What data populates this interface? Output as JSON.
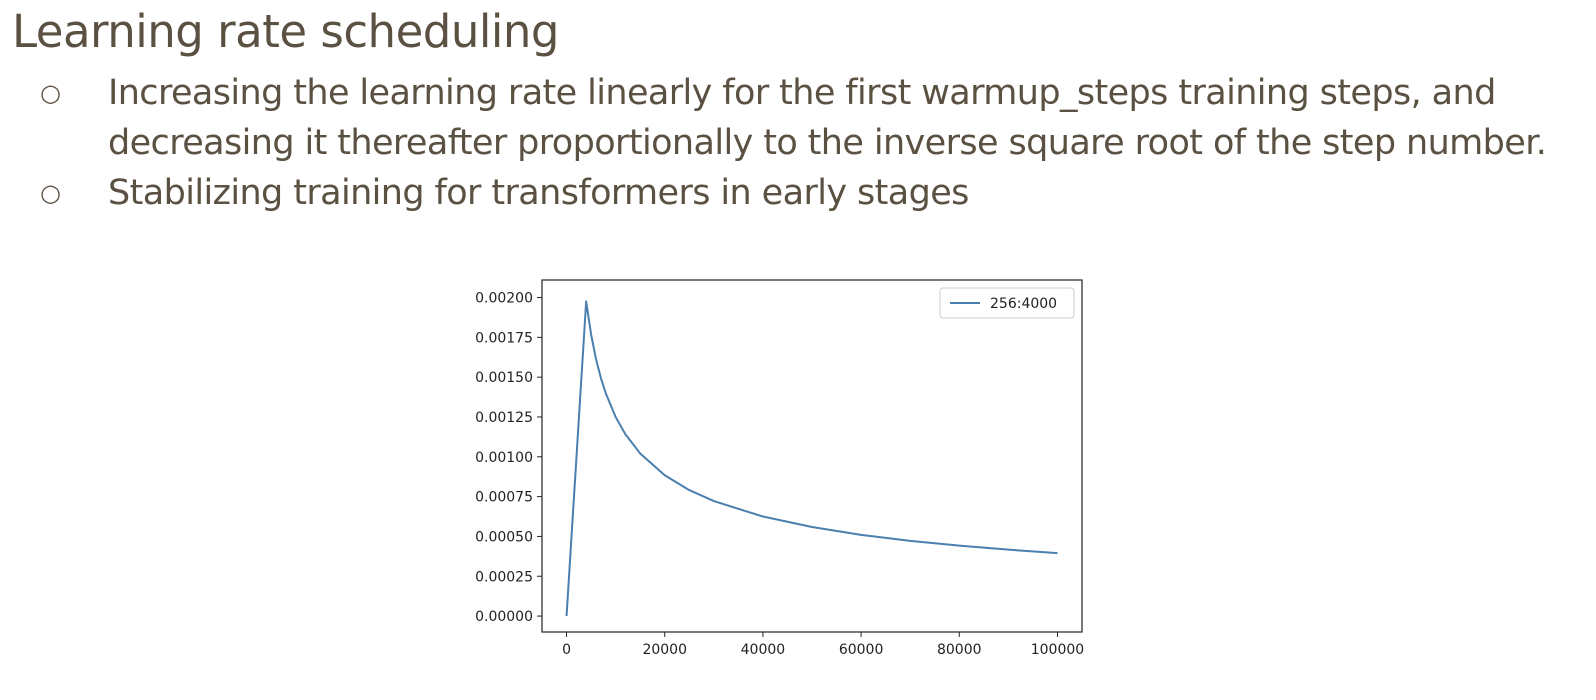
{
  "slide": {
    "title": "Learning rate scheduling",
    "bullet_marker": "○",
    "bullets": [
      "Increasing the learning rate linearly for the first warmup_steps training steps, and decreasing it thereafter proportionally to the inverse square root of the step number.",
      "Stabilizing training for transformers in early stages"
    ]
  },
  "chart_data": {
    "type": "line",
    "title": "",
    "xlabel": "",
    "ylabel": "",
    "xlim": [
      -5000,
      105000
    ],
    "ylim": [
      -0.0001,
      0.00211
    ],
    "x_ticks": [
      0,
      20000,
      40000,
      60000,
      80000,
      100000
    ],
    "x_tick_labels": [
      "0",
      "20000",
      "40000",
      "60000",
      "80000",
      "100000"
    ],
    "y_ticks": [
      0,
      0.00025,
      0.0005,
      0.00075,
      0.001,
      0.00125,
      0.0015,
      0.00175,
      0.002
    ],
    "y_tick_labels": [
      "0.00000",
      "0.00025",
      "0.00050",
      "0.00075",
      "0.00100",
      "0.00125",
      "0.00150",
      "0.00175",
      "0.00200"
    ],
    "grid": false,
    "legend_position": "top-right",
    "series": [
      {
        "name": "256:4000",
        "color": "#4a7fb0",
        "x": [
          0,
          4000,
          5000,
          6000,
          7000,
          8000,
          10000,
          12000,
          15000,
          20000,
          25000,
          30000,
          40000,
          50000,
          60000,
          70000,
          80000,
          90000,
          100000
        ],
        "y": [
          0.0,
          0.001976,
          0.001768,
          0.001614,
          0.001494,
          0.001398,
          0.00125,
          0.001141,
          0.001021,
          0.000884,
          0.000791,
          0.000722,
          0.000625,
          0.000559,
          0.00051,
          0.000472,
          0.000442,
          0.000417,
          0.000395
        ]
      }
    ]
  }
}
